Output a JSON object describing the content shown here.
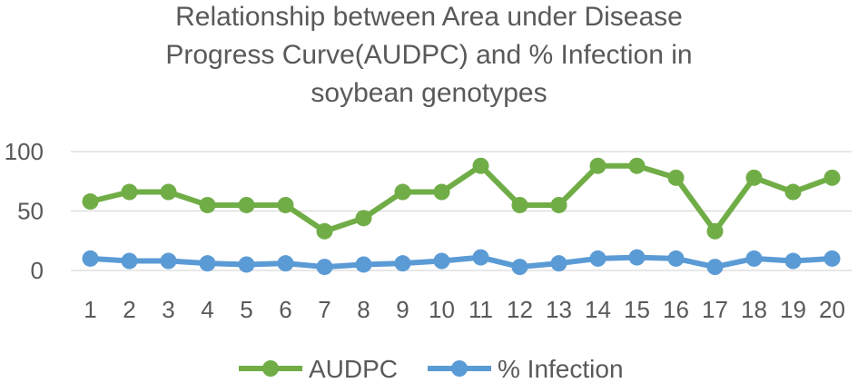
{
  "chart_data": {
    "type": "line",
    "title_lines": [
      "Relationship between Area under Disease",
      "Progress Curve(AUDPC) and % Infection in",
      "soybean genotypes"
    ],
    "categories": [
      "1",
      "2",
      "3",
      "4",
      "5",
      "6",
      "7",
      "8",
      "9",
      "10",
      "11",
      "12",
      "13",
      "14",
      "15",
      "16",
      "17",
      "18",
      "19",
      "20"
    ],
    "y_ticks": [
      "0",
      "50",
      "100"
    ],
    "ylim": [
      0,
      100
    ],
    "grid": true,
    "legend_position": "bottom",
    "series": [
      {
        "name": "AUDPC",
        "color": "#70AD47",
        "values": [
          58,
          66,
          66,
          55,
          55,
          55,
          33,
          44,
          66,
          66,
          88,
          55,
          55,
          88,
          88,
          78,
          33,
          78,
          66,
          78
        ]
      },
      {
        "name": "% Infection",
        "color": "#5B9BD5",
        "values": [
          10,
          8,
          8,
          6,
          5,
          6,
          3,
          5,
          6,
          8,
          11,
          3,
          6,
          10,
          11,
          10,
          3,
          10,
          8,
          10
        ]
      }
    ]
  }
}
